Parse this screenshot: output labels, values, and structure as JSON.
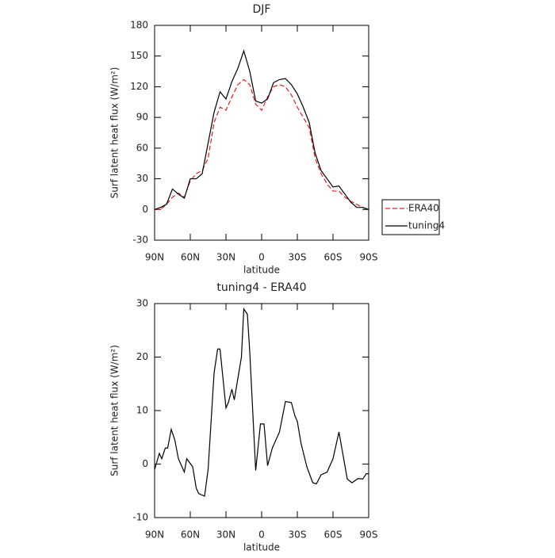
{
  "chart_data": [
    {
      "type": "line",
      "title": "DJF",
      "xlabel": "latitude",
      "ylabel": "Surf latent heat flux (W/m²)",
      "x": [
        90,
        85,
        80,
        75,
        70,
        65,
        60,
        55,
        50,
        45,
        40,
        35,
        30,
        25,
        20,
        15,
        10,
        5,
        0,
        -5,
        -10,
        -15,
        -20,
        -25,
        -30,
        -35,
        -40,
        -45,
        -50,
        -55,
        -60,
        -65,
        -70,
        -75,
        -80,
        -85,
        -90
      ],
      "series": [
        {
          "name": "ERA40",
          "color": "#e02020",
          "dash": true,
          "values": [
            0,
            0,
            5,
            12,
            16,
            12,
            28,
            35,
            38,
            50,
            85,
            100,
            97,
            110,
            122,
            127,
            122,
            103,
            97,
            110,
            120,
            122,
            120,
            112,
            100,
            90,
            80,
            50,
            35,
            25,
            18,
            18,
            12,
            8,
            5,
            2,
            0
          ]
        },
        {
          "name": "tuning4",
          "color": "#000000",
          "dash": false,
          "values": [
            0,
            2,
            5,
            20,
            15,
            11,
            30,
            30,
            35,
            65,
            95,
            115,
            108,
            125,
            138,
            155,
            135,
            106,
            104,
            108,
            124,
            127,
            128,
            122,
            113,
            100,
            85,
            55,
            38,
            30,
            22,
            23,
            15,
            7,
            2,
            2,
            0
          ]
        }
      ],
      "xlim": [
        90,
        -90
      ],
      "xticks": [
        {
          "value": 90,
          "label": "90N"
        },
        {
          "value": 60,
          "label": "60N"
        },
        {
          "value": 30,
          "label": "30N"
        },
        0,
        {
          "value": -30,
          "label": "30S"
        },
        {
          "value": -60,
          "label": "60S"
        },
        {
          "value": -90,
          "label": "90S"
        }
      ],
      "ylim": [
        -30,
        180
      ],
      "yticks": [
        -30,
        0,
        30,
        60,
        90,
        120,
        150,
        180
      ],
      "legend": "outside right"
    },
    {
      "type": "line",
      "title": "tuning4 - ERA40",
      "xlabel": "latitude",
      "ylabel": "Surf latent heat flux (W/m²)",
      "x": [
        90,
        86,
        84,
        81,
        79,
        76,
        73,
        70,
        65,
        63,
        58,
        55,
        53,
        48,
        45,
        40,
        37,
        35,
        30,
        28,
        25,
        23,
        17,
        15,
        12,
        10,
        5,
        1,
        -2,
        -5,
        -9,
        -15,
        -20,
        -25,
        -28,
        -30,
        -33,
        -38,
        -43,
        -46,
        -50,
        -55,
        -60,
        -65,
        -72,
        -76,
        -81,
        -85,
        -88,
        -90
      ],
      "series": [
        {
          "color": "#000000",
          "dash": false,
          "values": [
            -1,
            2,
            1,
            3,
            3,
            6.5,
            4.5,
            1,
            -1.5,
            1,
            -0.5,
            -4.5,
            -5.5,
            -6,
            -1,
            17,
            21.5,
            21.5,
            10.5,
            11.5,
            14,
            12,
            20,
            29,
            28,
            21,
            -1.2,
            7.5,
            7.5,
            -0.3,
            3,
            6,
            11.7,
            11.5,
            9,
            8,
            4,
            -0.5,
            -3.5,
            -3.7,
            -2,
            -1.5,
            1,
            6,
            -2.8,
            -3.5,
            -2.7,
            -2.8,
            -1.8,
            -1.8
          ]
        }
      ],
      "xlim": [
        90,
        -90
      ],
      "xticks": [
        {
          "value": 90,
          "label": "90N"
        },
        {
          "value": 60,
          "label": "60N"
        },
        {
          "value": 30,
          "label": "30N"
        },
        0,
        {
          "value": -30,
          "label": "30S"
        },
        {
          "value": -60,
          "label": "60S"
        },
        {
          "value": -90,
          "label": "90S"
        }
      ],
      "ylim": [
        -10,
        30
      ],
      "yticks": [
        -10,
        0,
        10,
        20,
        30
      ]
    }
  ]
}
